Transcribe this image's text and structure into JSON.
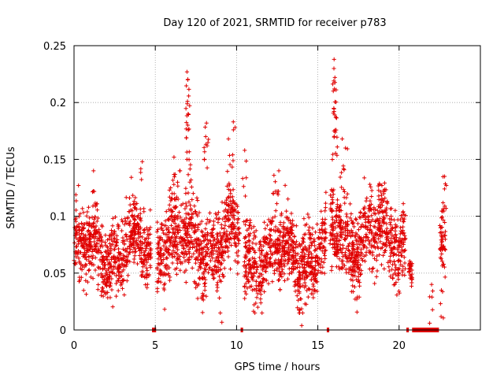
{
  "chart_data": {
    "type": "scatter",
    "title": "Day 120 of 2021, SRMTID for receiver p783",
    "xlabel": "GPS time / hours",
    "ylabel": "SRMTID / TECUs",
    "xlim": [
      0,
      25
    ],
    "ylim": [
      0,
      0.25
    ],
    "xticks": [
      0,
      5,
      10,
      15,
      20
    ],
    "yticks": [
      0,
      0.05,
      0.1,
      0.15,
      0.2,
      0.25
    ],
    "xtick_labels": [
      "0",
      "5",
      "10",
      "15",
      "20"
    ],
    "ytick_labels": [
      "0",
      "0.05",
      "0.1",
      "0.15",
      "0.2",
      "0.25"
    ],
    "grid": true,
    "marker": "+",
    "color": "#e00000",
    "baseline_gaps_hours": [
      [
        4.8,
        5.05
      ],
      [
        10.25,
        10.4
      ],
      [
        15.55,
        15.7
      ],
      [
        20.45,
        20.6
      ],
      [
        20.8,
        22.45
      ]
    ],
    "segments": [
      {
        "start": 0.0,
        "end": 4.75,
        "base": 0.07,
        "spread": 0.022
      },
      {
        "start": 5.1,
        "end": 10.2,
        "base": 0.078,
        "spread": 0.026
      },
      {
        "start": 10.45,
        "end": 15.5,
        "base": 0.066,
        "spread": 0.024
      },
      {
        "start": 15.75,
        "end": 20.4,
        "base": 0.082,
        "spread": 0.024
      },
      {
        "start": 20.6,
        "end": 20.8,
        "base": 0.062,
        "spread": 0.012
      },
      {
        "start": 22.5,
        "end": 22.85,
        "base": 0.085,
        "spread": 0.022
      }
    ],
    "peaks": [
      {
        "x": 1.2,
        "y": 0.14
      },
      {
        "x": 4.2,
        "y": 0.148
      },
      {
        "x": 6.15,
        "y": 0.152
      },
      {
        "x": 6.5,
        "y": 0.14
      },
      {
        "x": 6.95,
        "y": 0.227
      },
      {
        "x": 7.0,
        "y": 0.22
      },
      {
        "x": 6.98,
        "y": 0.201
      },
      {
        "x": 7.02,
        "y": 0.19
      },
      {
        "x": 8.15,
        "y": 0.182
      },
      {
        "x": 8.1,
        "y": 0.17
      },
      {
        "x": 9.5,
        "y": 0.168
      },
      {
        "x": 9.8,
        "y": 0.183
      },
      {
        "x": 10.5,
        "y": 0.158
      },
      {
        "x": 12.3,
        "y": 0.136
      },
      {
        "x": 12.6,
        "y": 0.14
      },
      {
        "x": 16.0,
        "y": 0.238
      },
      {
        "x": 16.05,
        "y": 0.222
      },
      {
        "x": 16.02,
        "y": 0.212
      },
      {
        "x": 16.1,
        "y": 0.187
      },
      {
        "x": 16.0,
        "y": 0.175
      },
      {
        "x": 16.5,
        "y": 0.168
      },
      {
        "x": 16.7,
        "y": 0.16
      },
      {
        "x": 18.2,
        "y": 0.128
      },
      {
        "x": 22.8,
        "y": 0.135
      },
      {
        "x": 22.6,
        "y": 0.035
      },
      {
        "x": 22.0,
        "y": 0.04
      },
      {
        "x": 9.0,
        "y": 0.015
      },
      {
        "x": 13.9,
        "y": 0.018
      }
    ]
  }
}
